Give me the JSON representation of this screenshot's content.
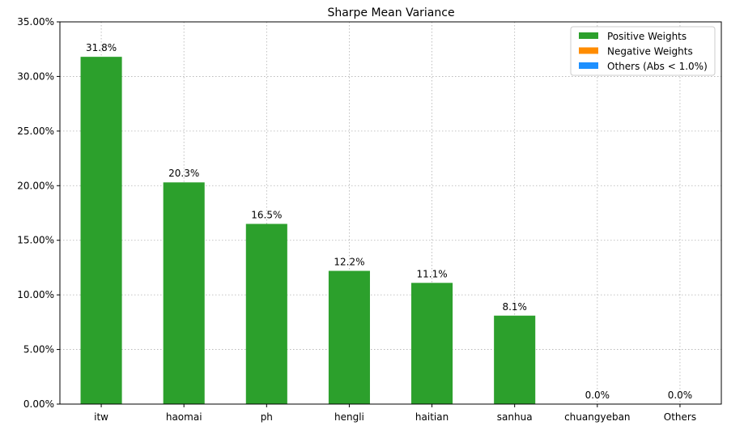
{
  "chart_data": {
    "type": "bar",
    "title": "Sharpe Mean Variance",
    "xlabel": "",
    "ylabel": "",
    "categories": [
      "itw",
      "haomai",
      "ph",
      "hengli",
      "haitian",
      "sanhua",
      "chuangyeban",
      "Others"
    ],
    "values": [
      31.8,
      20.3,
      16.5,
      12.2,
      11.1,
      8.1,
      0.0,
      0.0
    ],
    "value_labels": [
      "31.8%",
      "20.3%",
      "16.5%",
      "12.2%",
      "11.1%",
      "8.1%",
      "0.0%",
      "0.0%"
    ],
    "ylim": [
      0,
      35
    ],
    "yticks": [
      0,
      5,
      10,
      15,
      20,
      25,
      30,
      35
    ],
    "ytick_labels": [
      "0.00%",
      "5.00%",
      "10.00%",
      "15.00%",
      "20.00%",
      "25.00%",
      "30.00%",
      "35.00%"
    ],
    "grid": true,
    "legend_position": "top-right",
    "legend": [
      {
        "label": "Positive Weights",
        "color": "#2ca02c"
      },
      {
        "label": "Negative Weights",
        "color": "#ff8c00"
      },
      {
        "label": "Others (Abs < 1.0%)",
        "color": "#1e90ff"
      }
    ],
    "bar_color": "#2ca02c"
  }
}
